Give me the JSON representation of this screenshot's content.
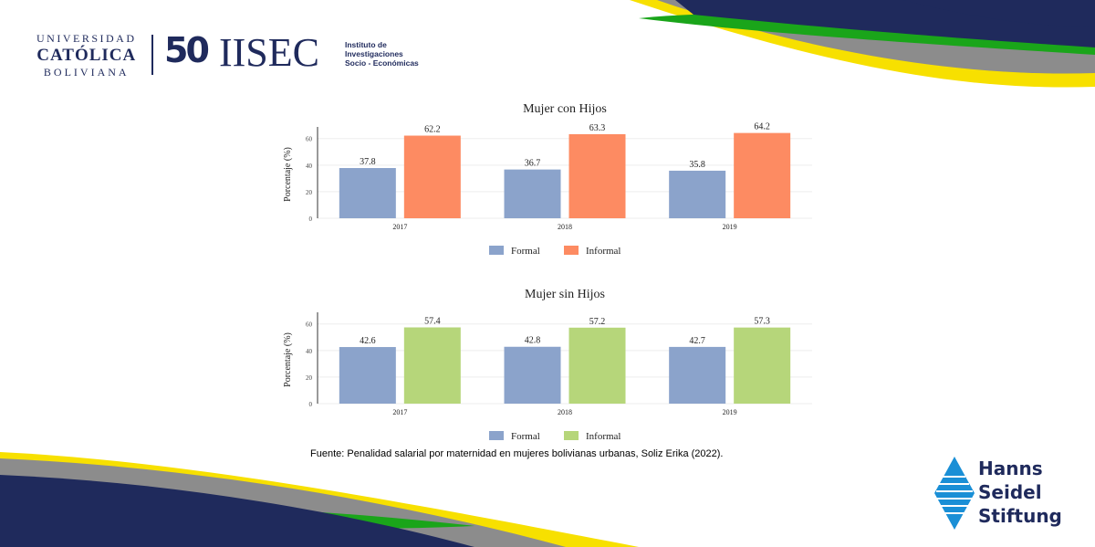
{
  "colors": {
    "navy": "#1f2a5c",
    "yellow": "#f7e000",
    "green": "#1aa51a",
    "gray": "#8c8c8c",
    "formal": "#8ba3cb",
    "informal_con_hijos": "#fd8b62",
    "informal_sin_hijos": "#b6d67a"
  },
  "logos": {
    "ucb": {
      "line1": "UNIVERSIDAD",
      "line2": "CATÓLICA",
      "line3": "BOLIVIANA"
    },
    "fifty": "50",
    "usec": "IISEC",
    "iisec_lines": [
      "Instituto de",
      "Investigaciones",
      "Socio - Económicas"
    ],
    "hanns": [
      "Hanns",
      "Seidel",
      "Stiftung"
    ]
  },
  "source": "Fuente: Penalidad salarial por maternidad en mujeres bolivianas urbanas, Soliz Erika (2022).",
  "chart_data": [
    {
      "type": "bar",
      "title": "Mujer con Hijos",
      "ylabel": "Porcentaje (%)",
      "xlabel": "",
      "categories": [
        "2017",
        "2018",
        "2019"
      ],
      "yticks": [
        0,
        20,
        40,
        60
      ],
      "ylim": [
        0,
        66
      ],
      "grid": true,
      "legend": "bottom",
      "series": [
        {
          "name": "Formal",
          "color": "#8ba3cb",
          "values": [
            37.8,
            36.7,
            35.8
          ]
        },
        {
          "name": "Informal",
          "color": "#fd8b62",
          "values": [
            62.2,
            63.3,
            64.2
          ]
        }
      ]
    },
    {
      "type": "bar",
      "title": "Mujer sin Hijos",
      "ylabel": "Porcentaje (%)",
      "xlabel": "",
      "categories": [
        "2017",
        "2018",
        "2019"
      ],
      "yticks": [
        0,
        20,
        40,
        60
      ],
      "ylim": [
        0,
        66
      ],
      "grid": true,
      "legend": "bottom",
      "series": [
        {
          "name": "Formal",
          "color": "#8ba3cb",
          "values": [
            42.6,
            42.8,
            42.7
          ]
        },
        {
          "name": "Informal",
          "color": "#b6d67a",
          "values": [
            57.4,
            57.2,
            57.3
          ]
        }
      ]
    }
  ]
}
